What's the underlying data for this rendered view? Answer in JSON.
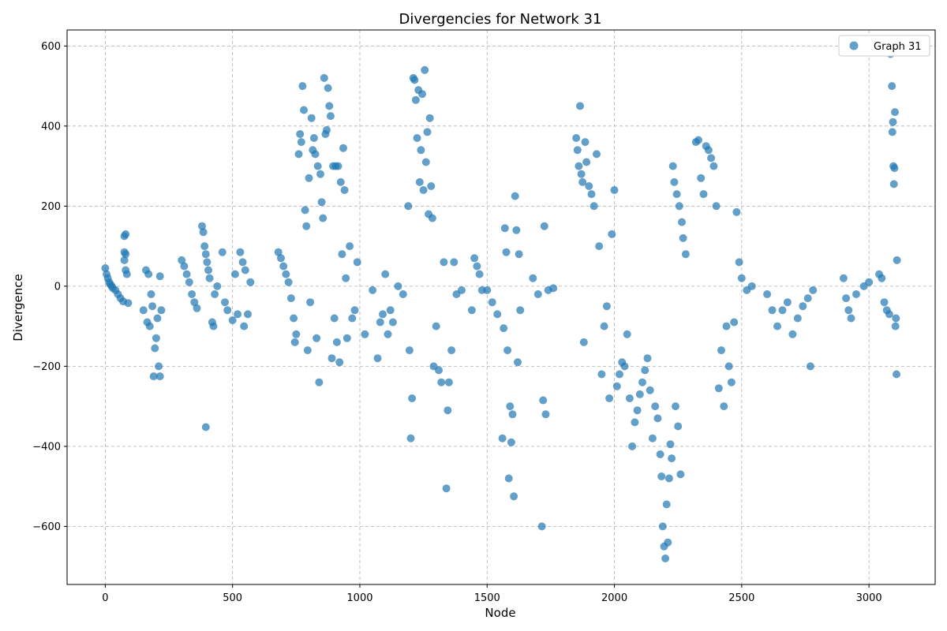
{
  "chart_data": {
    "type": "scatter",
    "title": "Divergencies for Network 31",
    "xlabel": "Node",
    "ylabel": "Divergence",
    "xlim": [
      -150,
      3260
    ],
    "ylim": [
      -745,
      640
    ],
    "xticks": [
      0,
      500,
      1000,
      1500,
      2000,
      2500,
      3000
    ],
    "yticks": [
      -600,
      -400,
      -200,
      0,
      200,
      400,
      600
    ],
    "grid": true,
    "legend_position": "top-right",
    "series": [
      {
        "name": "Graph 31",
        "color": "#1f77b4",
        "points": [
          [
            0,
            45
          ],
          [
            5,
            30
          ],
          [
            10,
            20
          ],
          [
            15,
            10
          ],
          [
            20,
            5
          ],
          [
            25,
            0
          ],
          [
            30,
            -5
          ],
          [
            40,
            -10
          ],
          [
            50,
            -20
          ],
          [
            60,
            -30
          ],
          [
            70,
            -38
          ],
          [
            75,
            125
          ],
          [
            80,
            130
          ],
          [
            75,
            85
          ],
          [
            80,
            80
          ],
          [
            75,
            65
          ],
          [
            80,
            40
          ],
          [
            85,
            30
          ],
          [
            90,
            -42
          ],
          [
            150,
            -60
          ],
          [
            160,
            40
          ],
          [
            165,
            -90
          ],
          [
            170,
            30
          ],
          [
            175,
            -100
          ],
          [
            180,
            -20
          ],
          [
            185,
            -50
          ],
          [
            190,
            -225
          ],
          [
            195,
            -155
          ],
          [
            200,
            -130
          ],
          [
            205,
            -80
          ],
          [
            210,
            -200
          ],
          [
            215,
            -225
          ],
          [
            220,
            -60
          ],
          [
            215,
            25
          ],
          [
            300,
            65
          ],
          [
            310,
            50
          ],
          [
            320,
            30
          ],
          [
            330,
            10
          ],
          [
            340,
            -20
          ],
          [
            350,
            -40
          ],
          [
            360,
            -55
          ],
          [
            380,
            150
          ],
          [
            385,
            135
          ],
          [
            390,
            100
          ],
          [
            395,
            80
          ],
          [
            400,
            60
          ],
          [
            405,
            40
          ],
          [
            410,
            20
          ],
          [
            395,
            -352
          ],
          [
            420,
            -90
          ],
          [
            425,
            -100
          ],
          [
            430,
            -20
          ],
          [
            440,
            0
          ],
          [
            460,
            85
          ],
          [
            470,
            -40
          ],
          [
            480,
            -60
          ],
          [
            500,
            -85
          ],
          [
            510,
            30
          ],
          [
            520,
            -70
          ],
          [
            530,
            85
          ],
          [
            540,
            60
          ],
          [
            545,
            -100
          ],
          [
            550,
            40
          ],
          [
            560,
            -70
          ],
          [
            570,
            10
          ],
          [
            680,
            85
          ],
          [
            690,
            70
          ],
          [
            700,
            50
          ],
          [
            710,
            30
          ],
          [
            720,
            10
          ],
          [
            730,
            -30
          ],
          [
            740,
            -80
          ],
          [
            745,
            -140
          ],
          [
            750,
            -120
          ],
          [
            760,
            330
          ],
          [
            765,
            380
          ],
          [
            770,
            360
          ],
          [
            775,
            500
          ],
          [
            780,
            440
          ],
          [
            785,
            190
          ],
          [
            790,
            150
          ],
          [
            795,
            -160
          ],
          [
            800,
            270
          ],
          [
            805,
            -40
          ],
          [
            810,
            420
          ],
          [
            815,
            340
          ],
          [
            820,
            370
          ],
          [
            825,
            330
          ],
          [
            830,
            -130
          ],
          [
            835,
            300
          ],
          [
            840,
            -240
          ],
          [
            845,
            280
          ],
          [
            850,
            210
          ],
          [
            855,
            170
          ],
          [
            860,
            520
          ],
          [
            865,
            380
          ],
          [
            870,
            390
          ],
          [
            875,
            495
          ],
          [
            880,
            450
          ],
          [
            885,
            425
          ],
          [
            890,
            -180
          ],
          [
            895,
            300
          ],
          [
            900,
            -80
          ],
          [
            905,
            300
          ],
          [
            910,
            -140
          ],
          [
            915,
            300
          ],
          [
            920,
            -190
          ],
          [
            925,
            260
          ],
          [
            930,
            80
          ],
          [
            935,
            345
          ],
          [
            940,
            240
          ],
          [
            945,
            20
          ],
          [
            950,
            -130
          ],
          [
            960,
            100
          ],
          [
            970,
            -80
          ],
          [
            980,
            -60
          ],
          [
            990,
            60
          ],
          [
            1020,
            -120
          ],
          [
            1050,
            -10
          ],
          [
            1070,
            -180
          ],
          [
            1080,
            -90
          ],
          [
            1090,
            -70
          ],
          [
            1100,
            30
          ],
          [
            1110,
            -120
          ],
          [
            1120,
            -60
          ],
          [
            1130,
            -90
          ],
          [
            1150,
            0
          ],
          [
            1170,
            -20
          ],
          [
            1190,
            200
          ],
          [
            1195,
            -160
          ],
          [
            1200,
            -380
          ],
          [
            1205,
            -280
          ],
          [
            1210,
            520
          ],
          [
            1215,
            515
          ],
          [
            1220,
            465
          ],
          [
            1225,
            370
          ],
          [
            1230,
            490
          ],
          [
            1235,
            260
          ],
          [
            1240,
            340
          ],
          [
            1245,
            480
          ],
          [
            1250,
            240
          ],
          [
            1255,
            540
          ],
          [
            1260,
            310
          ],
          [
            1265,
            385
          ],
          [
            1270,
            180
          ],
          [
            1275,
            420
          ],
          [
            1280,
            250
          ],
          [
            1285,
            170
          ],
          [
            1290,
            -200
          ],
          [
            1300,
            -100
          ],
          [
            1310,
            -210
          ],
          [
            1320,
            -240
          ],
          [
            1330,
            60
          ],
          [
            1340,
            -505
          ],
          [
            1345,
            -310
          ],
          [
            1350,
            -240
          ],
          [
            1360,
            -160
          ],
          [
            1370,
            60
          ],
          [
            1380,
            -20
          ],
          [
            1400,
            -10
          ],
          [
            1440,
            -60
          ],
          [
            1450,
            70
          ],
          [
            1460,
            50
          ],
          [
            1470,
            30
          ],
          [
            1480,
            -10
          ],
          [
            1500,
            -10
          ],
          [
            1520,
            -40
          ],
          [
            1540,
            -70
          ],
          [
            1560,
            -380
          ],
          [
            1565,
            -105
          ],
          [
            1570,
            145
          ],
          [
            1575,
            85
          ],
          [
            1580,
            -160
          ],
          [
            1585,
            -480
          ],
          [
            1590,
            -300
          ],
          [
            1595,
            -390
          ],
          [
            1600,
            -320
          ],
          [
            1605,
            -525
          ],
          [
            1610,
            225
          ],
          [
            1615,
            140
          ],
          [
            1620,
            -190
          ],
          [
            1625,
            80
          ],
          [
            1630,
            -60
          ],
          [
            1680,
            20
          ],
          [
            1700,
            -20
          ],
          [
            1715,
            -600
          ],
          [
            1720,
            -285
          ],
          [
            1725,
            150
          ],
          [
            1730,
            -320
          ],
          [
            1740,
            -10
          ],
          [
            1760,
            -5
          ],
          [
            1850,
            370
          ],
          [
            1855,
            340
          ],
          [
            1860,
            300
          ],
          [
            1865,
            450
          ],
          [
            1870,
            280
          ],
          [
            1875,
            260
          ],
          [
            1880,
            -140
          ],
          [
            1885,
            360
          ],
          [
            1890,
            310
          ],
          [
            1900,
            250
          ],
          [
            1910,
            230
          ],
          [
            1920,
            200
          ],
          [
            1930,
            330
          ],
          [
            1940,
            100
          ],
          [
            1950,
            -220
          ],
          [
            1960,
            -100
          ],
          [
            1970,
            -50
          ],
          [
            1980,
            -280
          ],
          [
            1990,
            130
          ],
          [
            2000,
            240
          ],
          [
            2010,
            -250
          ],
          [
            2020,
            -220
          ],
          [
            2030,
            -190
          ],
          [
            2040,
            -200
          ],
          [
            2050,
            -120
          ],
          [
            2060,
            -280
          ],
          [
            2070,
            -400
          ],
          [
            2080,
            -340
          ],
          [
            2090,
            -310
          ],
          [
            2100,
            -270
          ],
          [
            2110,
            -240
          ],
          [
            2120,
            -210
          ],
          [
            2130,
            -180
          ],
          [
            2140,
            -260
          ],
          [
            2150,
            -380
          ],
          [
            2160,
            -300
          ],
          [
            2170,
            -330
          ],
          [
            2180,
            -420
          ],
          [
            2185,
            -475
          ],
          [
            2190,
            -600
          ],
          [
            2195,
            -650
          ],
          [
            2200,
            -680
          ],
          [
            2205,
            -545
          ],
          [
            2210,
            -640
          ],
          [
            2215,
            -480
          ],
          [
            2220,
            -395
          ],
          [
            2225,
            -430
          ],
          [
            2230,
            300
          ],
          [
            2235,
            260
          ],
          [
            2240,
            -300
          ],
          [
            2245,
            230
          ],
          [
            2250,
            -350
          ],
          [
            2255,
            200
          ],
          [
            2260,
            -470
          ],
          [
            2265,
            160
          ],
          [
            2270,
            120
          ],
          [
            2280,
            80
          ],
          [
            2320,
            360
          ],
          [
            2330,
            365
          ],
          [
            2340,
            270
          ],
          [
            2350,
            230
          ],
          [
            2360,
            350
          ],
          [
            2370,
            340
          ],
          [
            2380,
            320
          ],
          [
            2390,
            300
          ],
          [
            2400,
            200
          ],
          [
            2410,
            -255
          ],
          [
            2420,
            -160
          ],
          [
            2430,
            -300
          ],
          [
            2440,
            -100
          ],
          [
            2450,
            -200
          ],
          [
            2460,
            -240
          ],
          [
            2470,
            -90
          ],
          [
            2480,
            185
          ],
          [
            2490,
            60
          ],
          [
            2500,
            20
          ],
          [
            2520,
            -10
          ],
          [
            2540,
            0
          ],
          [
            2600,
            -20
          ],
          [
            2620,
            -60
          ],
          [
            2640,
            -100
          ],
          [
            2660,
            -60
          ],
          [
            2680,
            -40
          ],
          [
            2700,
            -120
          ],
          [
            2720,
            -80
          ],
          [
            2740,
            -50
          ],
          [
            2760,
            -30
          ],
          [
            2770,
            -200
          ],
          [
            2780,
            -10
          ],
          [
            2900,
            20
          ],
          [
            2910,
            -30
          ],
          [
            2920,
            -60
          ],
          [
            2930,
            -80
          ],
          [
            2950,
            -20
          ],
          [
            2980,
            0
          ],
          [
            3000,
            10
          ],
          [
            3040,
            30
          ],
          [
            3050,
            20
          ],
          [
            3060,
            -40
          ],
          [
            3070,
            -60
          ],
          [
            3080,
            -70
          ],
          [
            3085,
            580
          ],
          [
            3088,
            600
          ],
          [
            3090,
            500
          ],
          [
            3092,
            385
          ],
          [
            3094,
            410
          ],
          [
            3096,
            300
          ],
          [
            3098,
            255
          ],
          [
            3100,
            295
          ],
          [
            3102,
            435
          ],
          [
            3104,
            -100
          ],
          [
            3106,
            -80
          ],
          [
            3108,
            -220
          ],
          [
            3110,
            65
          ]
        ]
      }
    ]
  }
}
